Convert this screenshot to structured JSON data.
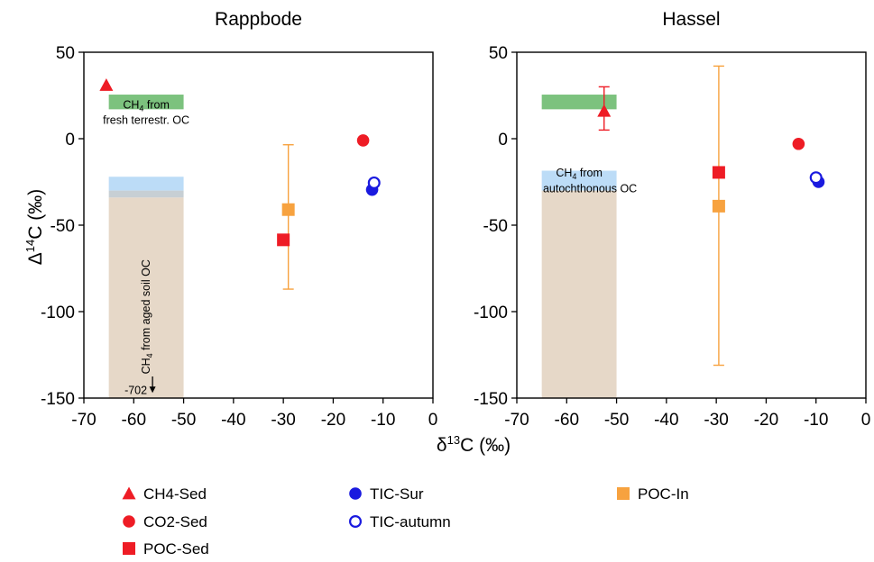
{
  "y_axis_title": {
    "base": "Δ",
    "sup": "14",
    "rest": "C (‰)"
  },
  "x_axis_title": {
    "base": "δ",
    "sup": "13",
    "rest": "C (‰)"
  },
  "chart_data": [
    {
      "type": "scatter",
      "title": "Rappbode",
      "xlim": [
        -70,
        0
      ],
      "ylim": [
        -150,
        50
      ],
      "xticks": [
        -70,
        -60,
        -50,
        -40,
        -30,
        -20,
        -10,
        0
      ],
      "yticks": [
        50,
        0,
        -50,
        -100,
        -150
      ],
      "grid": false,
      "series": [
        {
          "name": "CH4-Sed",
          "marker": "triangle",
          "color": "#ee1c25",
          "filled": true,
          "points": [
            {
              "x": -65.5,
              "y": 31
            }
          ]
        },
        {
          "name": "CO2-Sed",
          "marker": "circle",
          "color": "#ee1c25",
          "filled": true,
          "points": [
            {
              "x": -14,
              "y": -1
            }
          ]
        },
        {
          "name": "POC-Sed",
          "marker": "square",
          "color": "#ee1c25",
          "filled": true,
          "points": [
            {
              "x": -30,
              "y": -58.5
            }
          ]
        },
        {
          "name": "TIC-Sur",
          "marker": "circle",
          "color": "#1a1adf",
          "filled": true,
          "points": [
            {
              "x": -12.2,
              "y": -29.5
            }
          ]
        },
        {
          "name": "TIC-autumn",
          "marker": "circle",
          "color": "#1a1adf",
          "filled": false,
          "points": [
            {
              "x": -11.8,
              "y": -25.5
            }
          ]
        },
        {
          "name": "POC-In",
          "marker": "square",
          "color": "#f7a23f",
          "filled": true,
          "points": [
            {
              "x": -29,
              "y": -41,
              "y_err_low": -87,
              "y_err_high": -3.5
            }
          ]
        }
      ],
      "regions": [
        {
          "x": [
            -65,
            -50
          ],
          "y": [
            17,
            25.5
          ],
          "color": "#7cc27e",
          "label_main": "CH",
          "label_sub": "4",
          "label_rest": " from",
          "label_line2": "fresh terrestr. OC"
        },
        {
          "x": [
            -65,
            -50
          ],
          "y": [
            -150,
            -34
          ],
          "color": "#e6d8c8",
          "label_main": "CH",
          "label_sub": "4",
          "label_rest": " from aged soil OC",
          "rotated": true,
          "arrow_label": "-702"
        },
        {
          "x": [
            -65,
            -50
          ],
          "y": [
            -30,
            -22
          ],
          "color": "#bcdcf7"
        },
        {
          "x": [
            -65,
            -50
          ],
          "y": [
            -34,
            -30
          ],
          "color": "#c7cfd4"
        }
      ]
    },
    {
      "type": "scatter",
      "title": "Hassel",
      "xlim": [
        -70,
        0
      ],
      "ylim": [
        -150,
        50
      ],
      "xticks": [
        -70,
        -60,
        -50,
        -40,
        -30,
        -20,
        -10,
        0
      ],
      "yticks": [
        50,
        0,
        -50,
        -100,
        -150
      ],
      "grid": false,
      "series": [
        {
          "name": "CH4-Sed",
          "marker": "triangle",
          "color": "#ee1c25",
          "filled": true,
          "points": [
            {
              "x": -52.5,
              "y": 16,
              "y_err_low": 5,
              "y_err_high": 30
            }
          ]
        },
        {
          "name": "CO2-Sed",
          "marker": "circle",
          "color": "#ee1c25",
          "filled": true,
          "points": [
            {
              "x": -13.5,
              "y": -3
            }
          ]
        },
        {
          "name": "POC-Sed",
          "marker": "square",
          "color": "#ee1c25",
          "filled": true,
          "points": [
            {
              "x": -29.5,
              "y": -19.5
            }
          ]
        },
        {
          "name": "TIC-Sur",
          "marker": "circle",
          "color": "#1a1adf",
          "filled": true,
          "points": [
            {
              "x": -9.5,
              "y": -25
            }
          ]
        },
        {
          "name": "TIC-autumn",
          "marker": "circle",
          "color": "#1a1adf",
          "filled": false,
          "points": [
            {
              "x": -10,
              "y": -22.5
            }
          ]
        },
        {
          "name": "POC-In",
          "marker": "square",
          "color": "#f7a23f",
          "filled": true,
          "points": [
            {
              "x": -29.5,
              "y": -39,
              "y_err_low": -131,
              "y_err_high": 42
            }
          ]
        }
      ],
      "regions": [
        {
          "x": [
            -65,
            -50
          ],
          "y": [
            17,
            25.5
          ],
          "color": "#7cc27e"
        },
        {
          "x": [
            -65,
            -50
          ],
          "y": [
            -150,
            -30
          ],
          "color": "#e6d8c8"
        },
        {
          "x": [
            -65,
            -50
          ],
          "y": [
            -30,
            -18.5
          ],
          "color": "#bcdcf7",
          "label_main": "CH",
          "label_sub": "4",
          "label_rest": " from",
          "label_line2": "autochthonous OC"
        }
      ]
    }
  ],
  "legend": {
    "placement": "bottom",
    "items": [
      {
        "label": "CH4-Sed",
        "marker": "triangle",
        "color": "#ee1c25",
        "filled": true
      },
      {
        "label": "CO2-Sed",
        "marker": "circle",
        "color": "#ee1c25",
        "filled": true
      },
      {
        "label": "POC-Sed",
        "marker": "square",
        "color": "#ee1c25",
        "filled": true
      },
      {
        "label": "TIC-Sur",
        "marker": "circle",
        "color": "#1a1adf",
        "filled": true
      },
      {
        "label": "TIC-autumn",
        "marker": "circle",
        "color": "#1a1adf",
        "filled": false
      },
      {
        "label": "POC-In",
        "marker": "square",
        "color": "#f7a23f",
        "filled": true
      }
    ]
  }
}
